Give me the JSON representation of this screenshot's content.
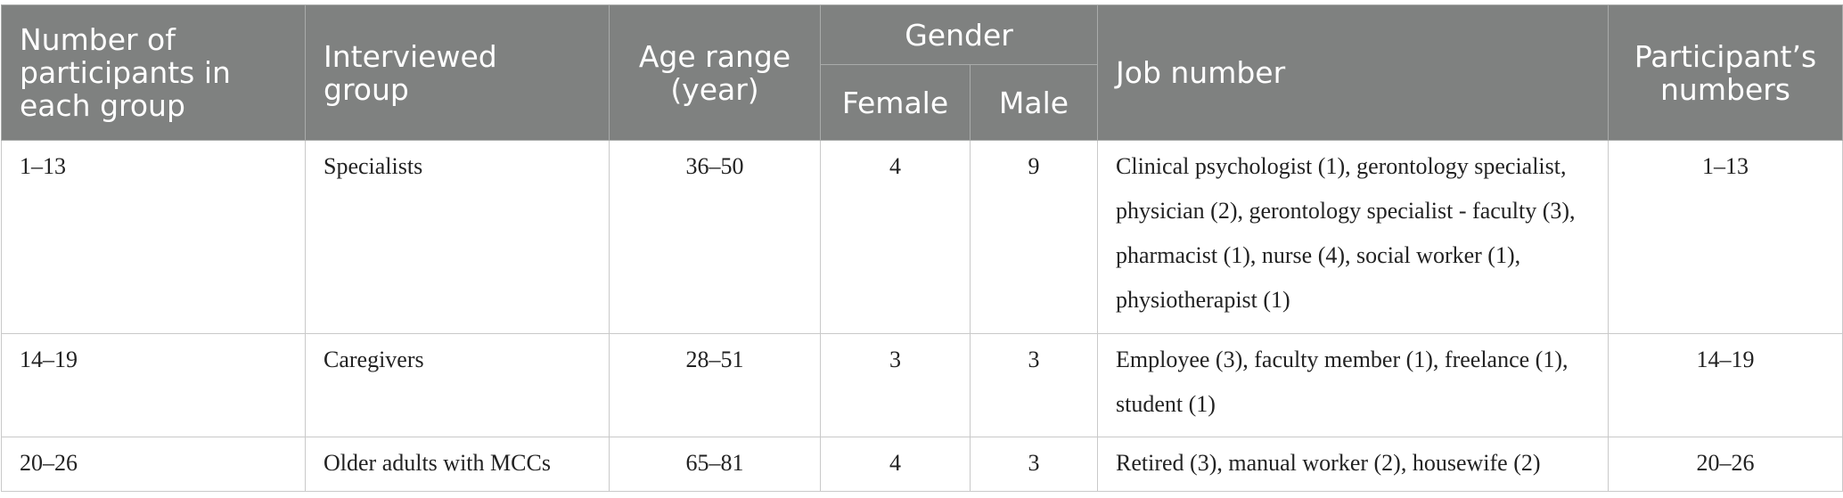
{
  "table": {
    "headers": {
      "col1": "Number of participants in each group",
      "col2": "Interviewed group",
      "col3": "Age range (year)",
      "gender": "Gender",
      "female": "Female",
      "male": "Male",
      "col6": "Job number",
      "col7": "Participant’s numbers"
    },
    "rows": [
      {
        "number": "1–13",
        "group": "Specialists",
        "age": "36–50",
        "female": "4",
        "male": "9",
        "job": "Clinical psychologist (1), gerontology specialist, physician (2), gerontology specialist - faculty (3), pharmacist (1), nurse (4), social worker (1), physiotherapist (1)",
        "participants": "1–13"
      },
      {
        "number": "14–19",
        "group": "Caregivers",
        "age": "28–51",
        "female": "3",
        "male": "3",
        "job": "Employee (3), faculty member (1), freelance (1), student (1)",
        "participants": "14–19"
      },
      {
        "number": "20–26",
        "group": "Older adults with MCCs",
        "age": "65–81",
        "female": "4",
        "male": "3",
        "job": "Retired (3), manual worker (2), housewife (2)",
        "participants": "20–26"
      }
    ]
  }
}
